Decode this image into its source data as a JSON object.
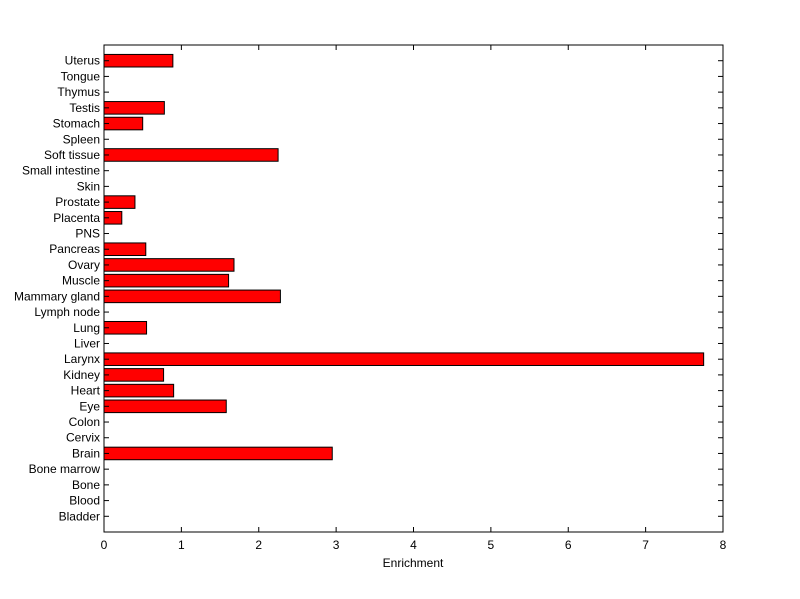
{
  "chart_data": {
    "type": "bar",
    "orientation": "horizontal",
    "title": "",
    "xlabel": "Enrichment",
    "ylabel": "",
    "xlim": [
      0,
      8
    ],
    "xticks": [
      0,
      1,
      2,
      3,
      4,
      5,
      6,
      7,
      8
    ],
    "grid": false,
    "bar_color": "#ff0000",
    "categories": [
      "Bladder",
      "Blood",
      "Bone",
      "Bone marrow",
      "Brain",
      "Cervix",
      "Colon",
      "Eye",
      "Heart",
      "Kidney",
      "Larynx",
      "Liver",
      "Lung",
      "Lymph node",
      "Mammary gland",
      "Muscle",
      "Ovary",
      "Pancreas",
      "PNS",
      "Placenta",
      "Prostate",
      "Skin",
      "Small intestine",
      "Soft tissue",
      "Spleen",
      "Stomach",
      "Testis",
      "Thymus",
      "Tongue",
      "Uterus"
    ],
    "values": [
      0,
      0,
      0,
      0,
      2.95,
      0,
      0,
      1.58,
      0.9,
      0.77,
      7.75,
      0,
      0.55,
      0,
      2.28,
      1.61,
      1.68,
      0.54,
      0,
      0.23,
      0.4,
      0,
      0,
      2.25,
      0,
      0.5,
      0.78,
      0,
      0,
      0.89
    ]
  }
}
